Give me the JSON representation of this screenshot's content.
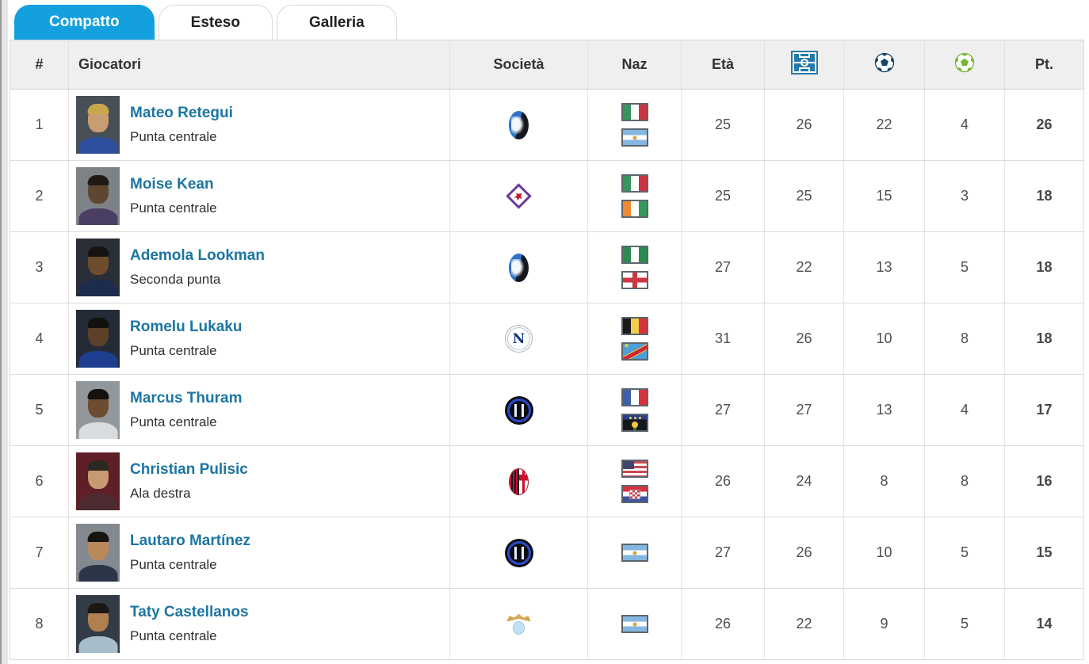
{
  "tabs": [
    {
      "label": "Compatto",
      "active": true
    },
    {
      "label": "Esteso",
      "active": false
    },
    {
      "label": "Galleria",
      "active": false
    }
  ],
  "table": {
    "columns": {
      "rank": "#",
      "player": "Giocatori",
      "club": "Società",
      "nat": "Naz",
      "age": "Età",
      "appearances_icon": "pitch-icon",
      "goals_icon": "soccer-ball-dark-icon",
      "assists_icon": "soccer-ball-green-icon",
      "points": "Pt."
    },
    "rows": [
      {
        "rank": "1",
        "name": "Mateo Retegui",
        "position": "Punta centrale",
        "club_id": "atalanta",
        "nationalities": [
          "italy",
          "argentina"
        ],
        "age": "25",
        "appearances": "26",
        "goals": "22",
        "assists": "4",
        "points": "26",
        "photo": {
          "bg": "#494f57",
          "skin": "#c99d72",
          "hair": "#c9a84c",
          "shirt": "#2e4f9e"
        }
      },
      {
        "rank": "2",
        "name": "Moise Kean",
        "position": "Punta centrale",
        "club_id": "fiorentina",
        "nationalities": [
          "italy",
          "ivory-coast"
        ],
        "age": "25",
        "appearances": "25",
        "goals": "15",
        "assists": "3",
        "points": "18",
        "photo": {
          "bg": "#7d8287",
          "skin": "#5f4630",
          "hair": "#1f1a16",
          "shirt": "#4a3f63"
        }
      },
      {
        "rank": "3",
        "name": "Ademola Lookman",
        "position": "Seconda punta",
        "club_id": "atalanta",
        "nationalities": [
          "nigeria",
          "england"
        ],
        "age": "27",
        "appearances": "22",
        "goals": "13",
        "assists": "5",
        "points": "18",
        "photo": {
          "bg": "#2a2e36",
          "skin": "#6e4c30",
          "hair": "#171310",
          "shirt": "#1d2c4e"
        }
      },
      {
        "rank": "4",
        "name": "Romelu Lukaku",
        "position": "Punta centrale",
        "club_id": "napoli",
        "nationalities": [
          "belgium",
          "dr-congo"
        ],
        "age": "31",
        "appearances": "26",
        "goals": "10",
        "assists": "8",
        "points": "18",
        "photo": {
          "bg": "#252b36",
          "skin": "#5d4029",
          "hair": "#12100d",
          "shirt": "#1e3f8f"
        }
      },
      {
        "rank": "5",
        "name": "Marcus Thuram",
        "position": "Punta centrale",
        "club_id": "inter",
        "nationalities": [
          "france",
          "guadeloupe"
        ],
        "age": "27",
        "appearances": "27",
        "goals": "13",
        "assists": "4",
        "points": "17",
        "photo": {
          "bg": "#92979c",
          "skin": "#6e4c30",
          "hair": "#14110e",
          "shirt": "#d9dde0"
        }
      },
      {
        "rank": "6",
        "name": "Christian Pulisic",
        "position": "Ala destra",
        "club_id": "milan",
        "nationalities": [
          "usa",
          "croatia"
        ],
        "age": "26",
        "appearances": "24",
        "goals": "8",
        "assists": "8",
        "points": "16",
        "photo": {
          "bg": "#5e1f26",
          "skin": "#c79a72",
          "hair": "#2e2822",
          "shirt": "#4e2a31"
        }
      },
      {
        "rank": "7",
        "name": "Lautaro Martínez",
        "position": "Punta centrale",
        "club_id": "inter",
        "nationalities": [
          "argentina"
        ],
        "age": "27",
        "appearances": "26",
        "goals": "10",
        "assists": "5",
        "points": "15",
        "photo": {
          "bg": "#83898f",
          "skin": "#b9895c",
          "hair": "#17130f",
          "shirt": "#2c3547"
        }
      },
      {
        "rank": "8",
        "name": "Taty Castellanos",
        "position": "Punta centrale",
        "club_id": "lazio",
        "nationalities": [
          "argentina"
        ],
        "age": "26",
        "appearances": "22",
        "goals": "9",
        "assists": "5",
        "points": "14",
        "photo": {
          "bg": "#333b46",
          "skin": "#b08050",
          "hair": "#1c1712",
          "shirt": "#a8bdcb"
        }
      }
    ]
  },
  "colors": {
    "active_tab": "#14a0de",
    "link_blue": "#1d75a3",
    "header_bg": "#efefef",
    "pitch_icon_bg": "#2579a8",
    "goals_ball": "#17456b",
    "assists_ball": "#74b62e"
  }
}
